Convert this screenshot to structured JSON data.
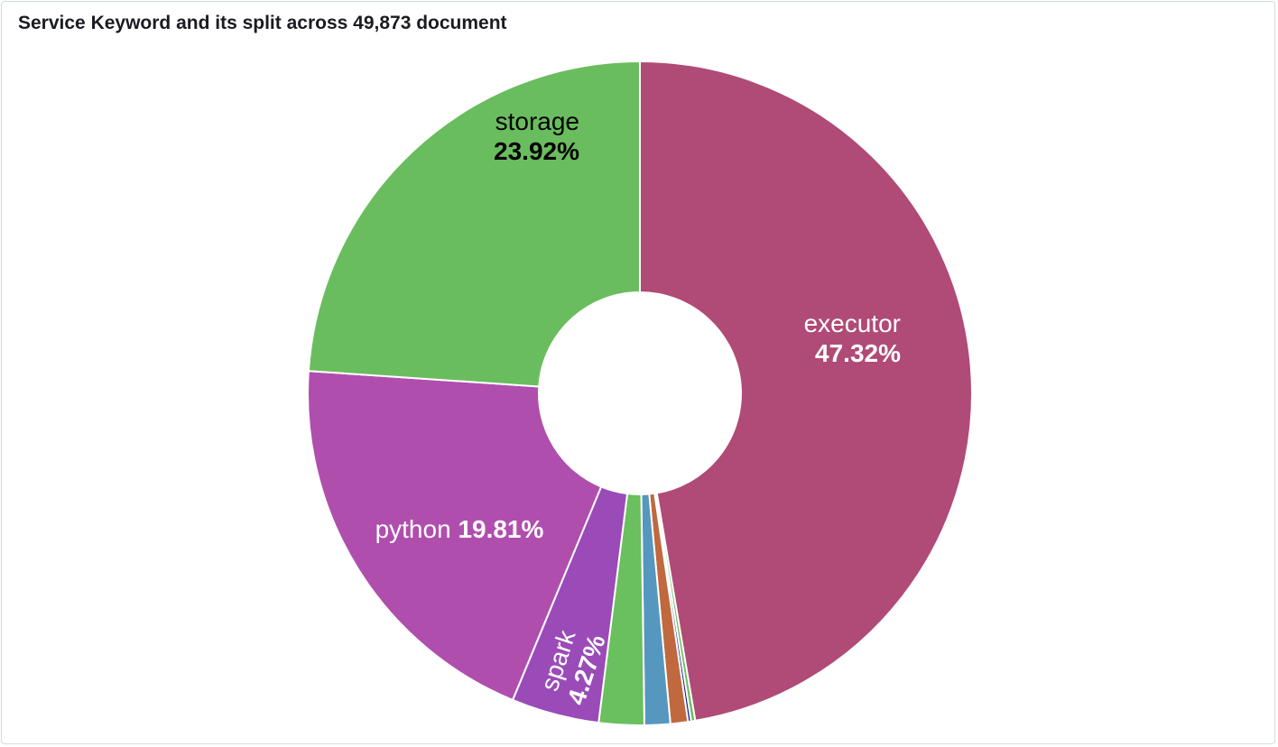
{
  "panel": {
    "title": "Service Keyword and its split across 49,873 document"
  },
  "chart_data": {
    "type": "pie",
    "donut": true,
    "title": "Service Keyword and its split across 49,873 document",
    "unit": "%",
    "start_angle_deg": 0,
    "direction": "clockwise",
    "slices": [
      {
        "label": "executor",
        "value": 47.32,
        "value_text": "47.32%",
        "color": "#b04a76",
        "label_color": "#ffffff",
        "show_label": true
      },
      {
        "label": "",
        "value": 0.2,
        "value_text": "",
        "color": "#6abf5e",
        "show_label": false
      },
      {
        "label": "",
        "value": 0.15,
        "value_text": "",
        "color": "#1c1c9a",
        "show_label": false
      },
      {
        "label": "",
        "value": 0.85,
        "value_text": "",
        "color": "#c0683e",
        "show_label": false
      },
      {
        "label": "",
        "value": 1.25,
        "value_text": "",
        "color": "#5597bf",
        "show_label": false
      },
      {
        "label": "",
        "value": 2.2,
        "value_text": "",
        "color": "#6abf5e",
        "show_label": false
      },
      {
        "label": "spark",
        "value": 4.27,
        "value_text": "4.27%",
        "color": "#9a4bb8",
        "label_color": "#ffffff",
        "show_label": true
      },
      {
        "label": "python",
        "value": 19.81,
        "value_text": "19.81%",
        "color": "#b04ead",
        "label_color": "#ffffff",
        "show_label": true
      },
      {
        "label": "storage",
        "value": 23.92,
        "value_text": "23.92%",
        "color": "#6abd5e",
        "label_color": "#000000",
        "show_label": true
      }
    ]
  }
}
